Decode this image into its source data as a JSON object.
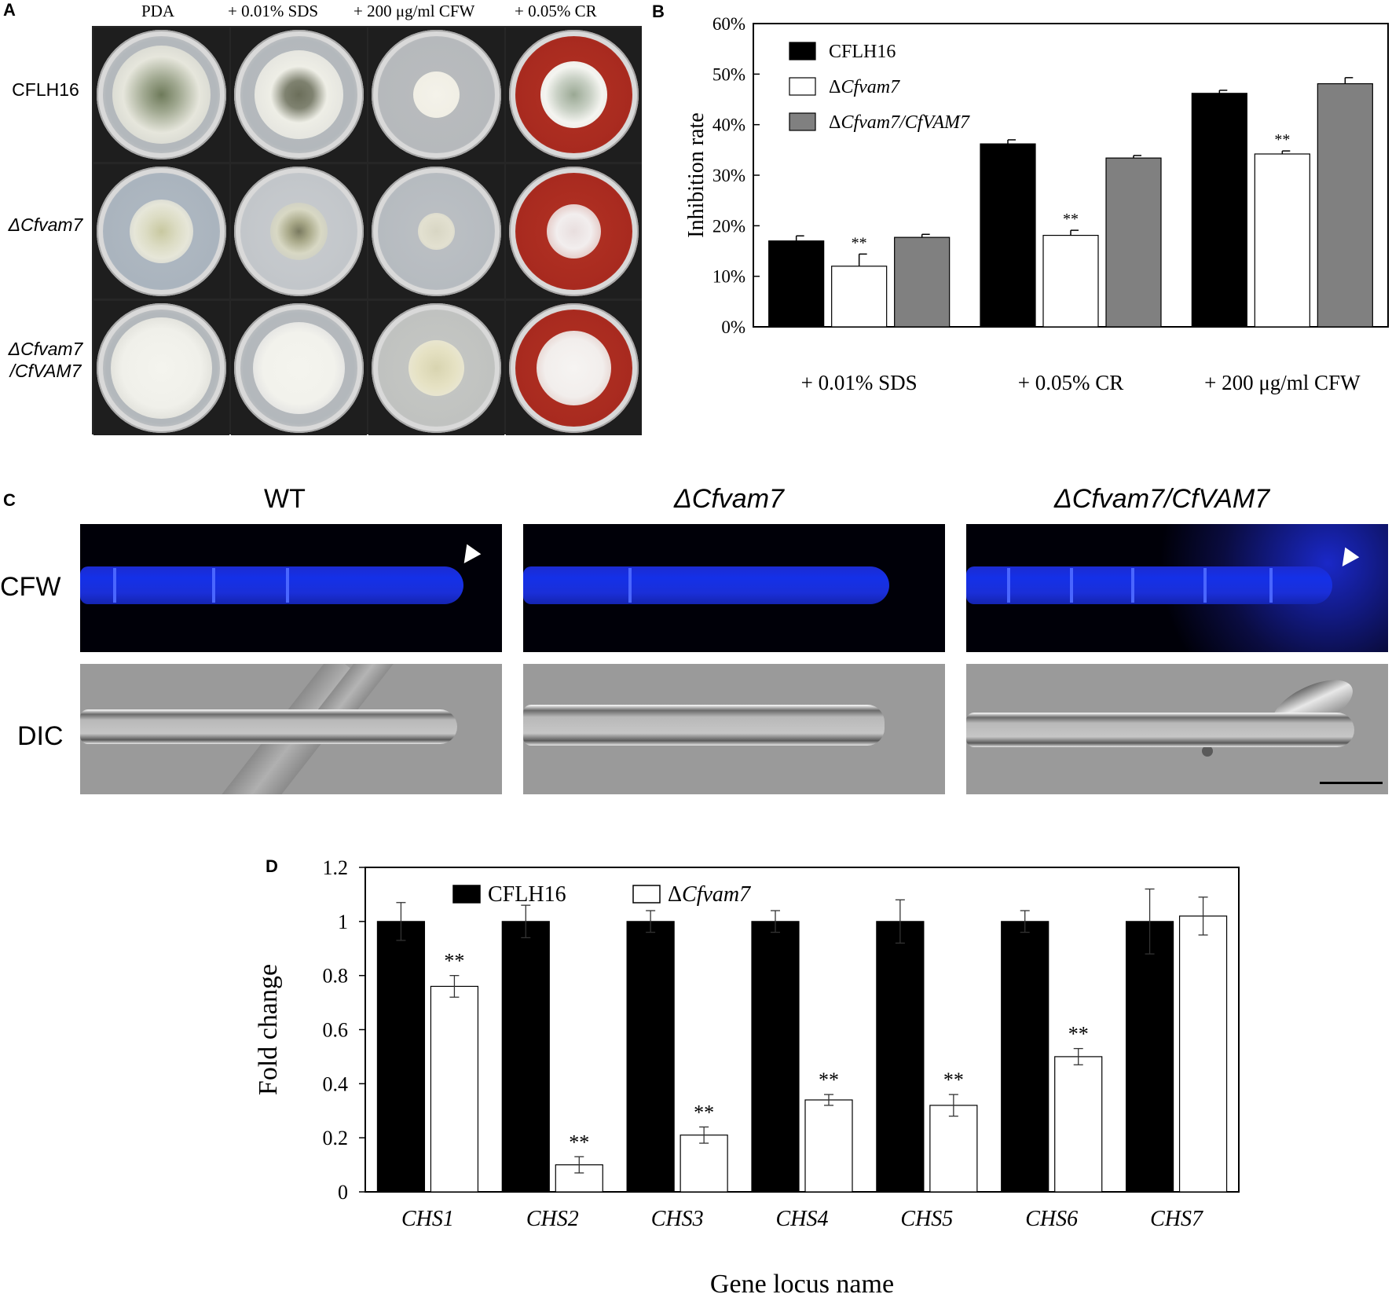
{
  "panelA": {
    "letter": "A",
    "columns": [
      "PDA",
      "+ 0.01% SDS",
      "+ 200 μg/ml CFW",
      "+ 0.05% CR"
    ],
    "rows": [
      {
        "label": "CFLH16",
        "italic": false
      },
      {
        "label": "ΔCfvam7",
        "italic": true
      },
      {
        "label": "ΔCfvam7\n/CfVAM7",
        "italic": true
      }
    ]
  },
  "panelB": {
    "letter": "B",
    "chart_data": {
      "type": "bar",
      "title": "",
      "xlabel": "",
      "ylabel": "Inhibition rate",
      "categories": [
        "+ 0.01% SDS",
        "+ 0.05% CR",
        "+ 200 μg/ml CFW"
      ],
      "ylim": [
        0,
        60
      ],
      "yticks": [
        "0%",
        "10%",
        "20%",
        "30%",
        "40%",
        "50%",
        "60%"
      ],
      "legend_position": "top-left",
      "series": [
        {
          "name": "CFLH16",
          "color": "#000000",
          "values": [
            17.0,
            36.2,
            46.2
          ],
          "errors": [
            1.0,
            0.8,
            0.6
          ]
        },
        {
          "name": "ΔCfvam7",
          "color": "#ffffff",
          "values": [
            12.0,
            18.1,
            34.2
          ],
          "errors": [
            2.4,
            1.0,
            0.6
          ],
          "stars": [
            "**",
            "**",
            "**"
          ]
        },
        {
          "name": "ΔCfvam7/CfVAM7",
          "color": "#808080",
          "values": [
            17.7,
            33.4,
            48.1
          ],
          "errors": [
            0.6,
            0.5,
            1.2
          ]
        }
      ]
    }
  },
  "panelC": {
    "letter": "C",
    "columns": [
      "WT",
      "ΔCfvam7",
      "ΔCfvam7/CfVAM7"
    ],
    "rows": [
      "CFW",
      "DIC"
    ]
  },
  "panelD": {
    "letter": "D",
    "chart_data": {
      "type": "bar",
      "title": "",
      "xlabel": "Gene locus name",
      "ylabel": "Fold change",
      "categories": [
        "CHS1",
        "CHS2",
        "CHS3",
        "CHS4",
        "CHS5",
        "CHS6",
        "CHS7"
      ],
      "ylim": [
        0,
        1.2
      ],
      "yticks": [
        "0",
        "0.2",
        "0.4",
        "0.6",
        "0.8",
        "1",
        "1.2"
      ],
      "legend_position": "top",
      "series": [
        {
          "name": "CFLH16",
          "color": "#000000",
          "values": [
            1,
            1,
            1,
            1,
            1,
            1,
            1
          ],
          "errors": [
            0.07,
            0.06,
            0.04,
            0.04,
            0.08,
            0.04,
            0.12
          ]
        },
        {
          "name": "ΔCfvam7",
          "color": "#ffffff",
          "values": [
            0.76,
            0.1,
            0.21,
            0.34,
            0.32,
            0.5,
            1.02
          ],
          "errors": [
            0.04,
            0.03,
            0.03,
            0.02,
            0.04,
            0.03,
            0.07
          ],
          "stars": [
            "**",
            "**",
            "**",
            "**",
            "**",
            "**",
            ""
          ]
        }
      ]
    }
  }
}
